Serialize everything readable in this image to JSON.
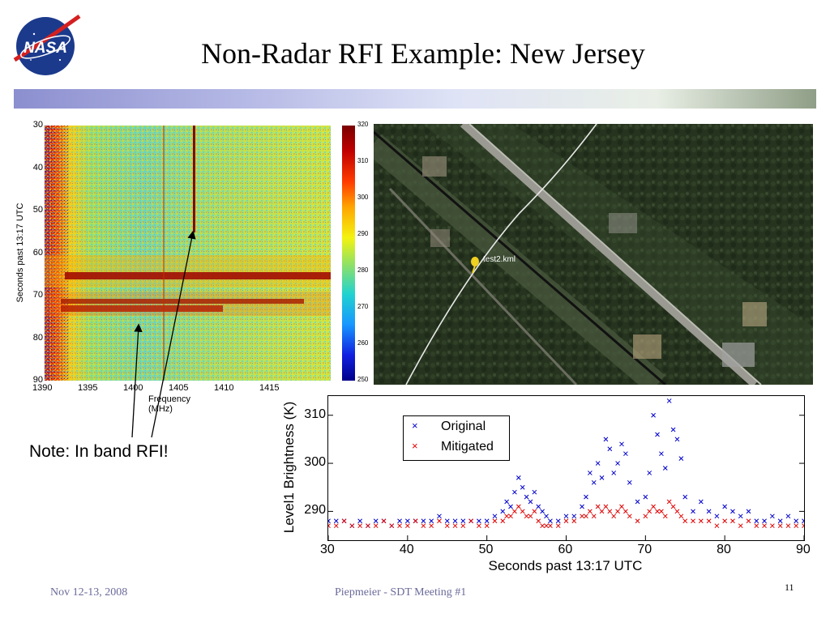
{
  "slide": {
    "title": "Non-Radar RFI Example: New Jersey",
    "logo_text": "NASA",
    "note": "Note: In band RFI!",
    "footer_left": "Nov 12-13, 2008",
    "footer_center": "Piepmeier - SDT Meeting #1",
    "page_number": "11"
  },
  "colors": {
    "band_start": "#8c8fcf",
    "band_end": "#8f9e86",
    "original_series": "#0000cc",
    "mitigated_series": "#e00000"
  },
  "spectrogram": {
    "ylabel": "Seconds past 13:17 UTC",
    "xlabel": "Frequency (MHz)",
    "yticks": [
      "30",
      "40",
      "50",
      "60",
      "70",
      "80",
      "90"
    ],
    "xticks": [
      "1390",
      "1395",
      "1400",
      "1405",
      "1410",
      "1415"
    ],
    "colorbar_ticks": [
      "320",
      "310",
      "300",
      "290",
      "280",
      "270",
      "260",
      "250"
    ]
  },
  "map": {
    "marker_label": "test2.kml"
  },
  "chart_data": {
    "type": "scatter",
    "xlabel": "Seconds past 13:17 UTC",
    "ylabel": "Level1 Brightness (K)",
    "xlim": [
      30,
      90
    ],
    "ylim": [
      284,
      314
    ],
    "xticks": [
      "30",
      "40",
      "50",
      "60",
      "70",
      "80",
      "90"
    ],
    "yticks": [
      "290",
      "300",
      "310"
    ],
    "legend_position": "top-left",
    "series": [
      {
        "name": "Original",
        "marker": "x",
        "x": [
          30,
          31,
          32,
          33,
          34,
          35,
          36,
          37,
          38,
          39,
          40,
          41,
          42,
          43,
          44,
          45,
          46,
          47,
          48,
          49,
          50,
          51,
          52,
          52.5,
          53,
          53.5,
          54,
          54.5,
          55,
          55.5,
          56,
          56.5,
          57,
          57.5,
          58,
          59,
          60,
          61,
          62,
          62.5,
          63,
          63.5,
          64,
          64.5,
          65,
          65.5,
          66,
          66.5,
          67,
          67.5,
          68,
          69,
          70,
          70.5,
          71,
          71.5,
          72,
          72.5,
          73,
          73.5,
          74,
          74.5,
          75,
          76,
          77,
          78,
          79,
          80,
          81,
          82,
          83,
          84,
          85,
          86,
          87,
          88,
          89,
          90
        ],
        "y": [
          288,
          288,
          288,
          287,
          288,
          287,
          288,
          288,
          287,
          288,
          288,
          288,
          288,
          288,
          289,
          288,
          288,
          288,
          288,
          288,
          288,
          289,
          290,
          292,
          291,
          294,
          297,
          295,
          293,
          292,
          294,
          291,
          290,
          289,
          288,
          288,
          289,
          289,
          291,
          293,
          298,
          296,
          300,
          297,
          305,
          303,
          298,
          300,
          304,
          302,
          296,
          292,
          293,
          298,
          310,
          306,
          302,
          299,
          313,
          307,
          305,
          301,
          293,
          290,
          292,
          290,
          289,
          291,
          290,
          289,
          290,
          288,
          288,
          289,
          288,
          289,
          288,
          288
        ]
      },
      {
        "name": "Mitigated",
        "marker": "x",
        "x": [
          30,
          31,
          32,
          33,
          34,
          35,
          36,
          37,
          38,
          39,
          40,
          41,
          42,
          43,
          44,
          45,
          46,
          47,
          48,
          49,
          50,
          51,
          52,
          52.5,
          53,
          53.5,
          54,
          54.5,
          55,
          55.5,
          56,
          56.5,
          57,
          57.5,
          58,
          59,
          60,
          61,
          62,
          62.5,
          63,
          63.5,
          64,
          64.5,
          65,
          65.5,
          66,
          66.5,
          67,
          67.5,
          68,
          69,
          70,
          70.5,
          71,
          71.5,
          72,
          72.5,
          73,
          73.5,
          74,
          74.5,
          75,
          76,
          77,
          78,
          79,
          80,
          81,
          82,
          83,
          84,
          85,
          86,
          87,
          88,
          89,
          90
        ],
        "y": [
          287,
          287,
          288,
          287,
          287,
          287,
          287,
          288,
          287,
          287,
          287,
          288,
          287,
          287,
          288,
          287,
          287,
          287,
          288,
          287,
          287,
          288,
          288,
          289,
          289,
          290,
          291,
          290,
          289,
          289,
          290,
          288,
          287,
          287,
          287,
          287,
          288,
          288,
          289,
          289,
          290,
          289,
          291,
          290,
          291,
          290,
          289,
          290,
          291,
          290,
          289,
          288,
          289,
          290,
          291,
          290,
          290,
          289,
          292,
          291,
          290,
          289,
          288,
          288,
          288,
          288,
          287,
          288,
          288,
          287,
          288,
          287,
          287,
          287,
          287,
          287,
          287,
          287
        ]
      }
    ]
  }
}
